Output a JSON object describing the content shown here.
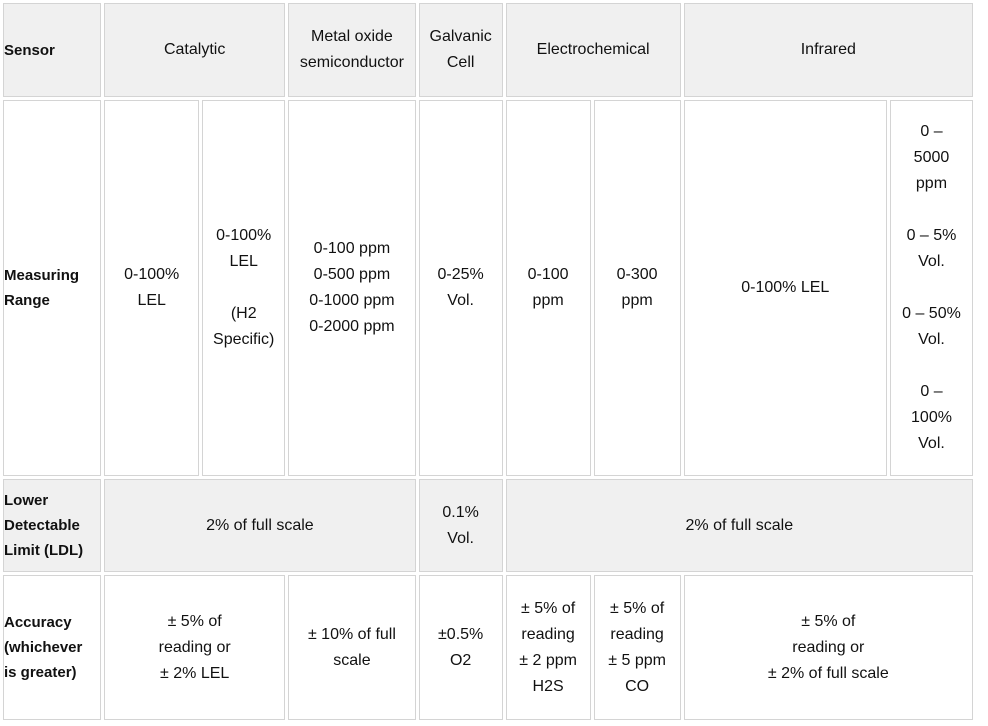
{
  "header": {
    "sensor": "Sensor",
    "catalytic": "Catalytic",
    "metal_oxide": "Metal oxide\nsemiconductor",
    "galvanic": "Galvanic\nCell",
    "electrochemical": "Electrochemical",
    "infrared": "Infrared"
  },
  "measuring_range": {
    "label": "Measuring\nRange",
    "catalytic_1": "0-100%\nLEL",
    "catalytic_2": "0-100%\nLEL\n\n(H2\nSpecific)",
    "metal_oxide": "0-100 ppm\n0-500 ppm\n0-1000 ppm\n0-2000 ppm",
    "galvanic": "0-25%\nVol.",
    "electrochemical_1": "0-100\nppm",
    "electrochemical_2": "0-300\nppm",
    "infrared_1": "0-100% LEL",
    "infrared_2": "0 –\n5000\nppm\n\n0 – 5%\nVol.\n\n0 – 50%\nVol.\n\n0 –\n100%\nVol."
  },
  "ldl": {
    "label": "Lower\nDetectable\nLimit (LDL)",
    "left": "2% of full scale",
    "galvanic": "0.1%\nVol.",
    "right": "2% of full scale"
  },
  "accuracy": {
    "label": "Accuracy\n(whichever\nis greater)",
    "catalytic": "± 5% of\nreading or\n± 2% LEL",
    "metal_oxide": "± 10% of full\nscale",
    "galvanic": "±0.5%\nO2",
    "electrochemical_1": "± 5% of\nreading\n± 2 ppm\nH2S",
    "electrochemical_2": "± 5% of\nreading\n± 5 ppm\nCO",
    "infrared": "± 5% of\nreading or\n± 2% of full scale"
  }
}
